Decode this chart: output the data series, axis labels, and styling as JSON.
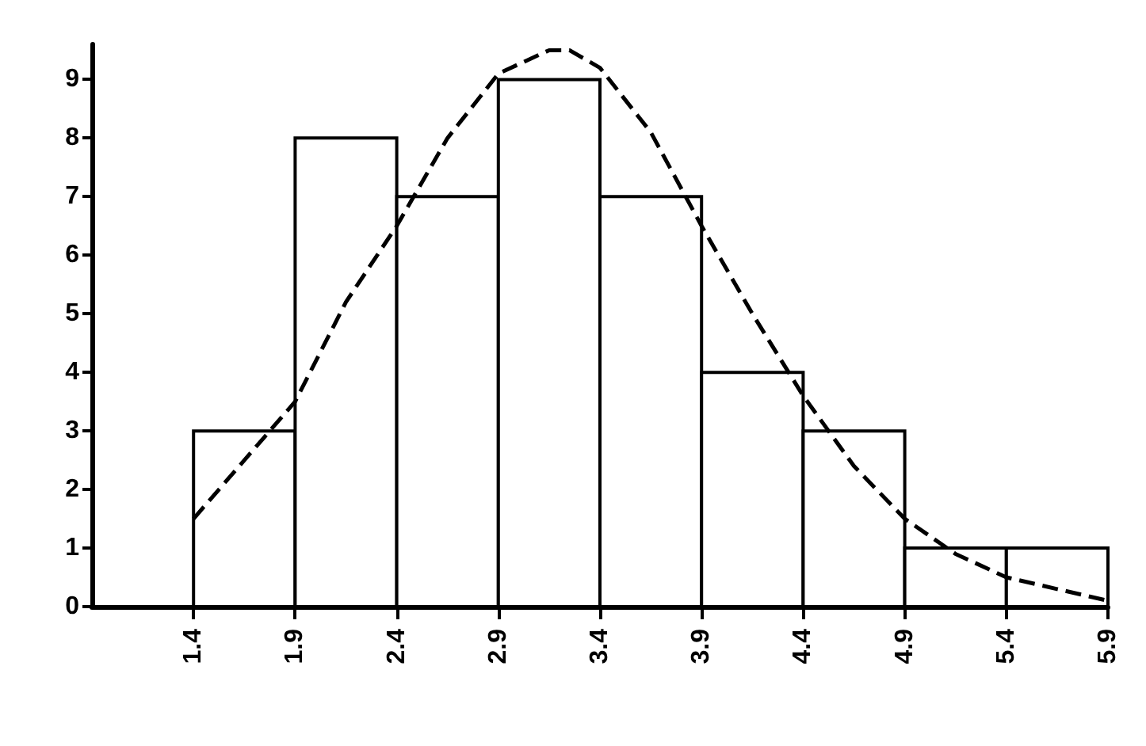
{
  "chart_data": {
    "type": "histogram",
    "bins": [
      1.4,
      1.9,
      2.4,
      2.9,
      3.4,
      3.9,
      4.4,
      4.9,
      5.4,
      5.9
    ],
    "values": [
      3,
      8,
      7,
      9,
      7,
      4,
      3,
      1,
      1
    ],
    "color": "#ffffff",
    "series": [
      {
        "type": "line",
        "x": [
          1.4,
          1.9,
          2.15,
          2.4,
          2.65,
          2.9,
          3.15,
          3.25,
          3.4,
          3.65,
          3.9,
          4.15,
          4.4,
          4.65,
          4.9,
          5.15,
          5.4,
          5.65,
          5.9
        ],
        "values": [
          1.5,
          3.5,
          5.2,
          6.5,
          8,
          9.1,
          9.5,
          9.5,
          9.2,
          8.1,
          6.5,
          5,
          3.6,
          2.4,
          1.5,
          0.9,
          0.5,
          0.3,
          0.1
        ],
        "color": "#000000",
        "line_style": "dashed",
        "marker": "none"
      }
    ],
    "xlim": [
      0.9,
      5.9
    ],
    "xticks": [
      1.4,
      1.9,
      2.4,
      2.9,
      3.4,
      3.9,
      4.4,
      4.9,
      5.4,
      5.9
    ],
    "ylim": [
      0,
      9.6
    ],
    "yticks": [
      0,
      1,
      2,
      3,
      4,
      5,
      6,
      7,
      8,
      9
    ],
    "grid": false
  }
}
